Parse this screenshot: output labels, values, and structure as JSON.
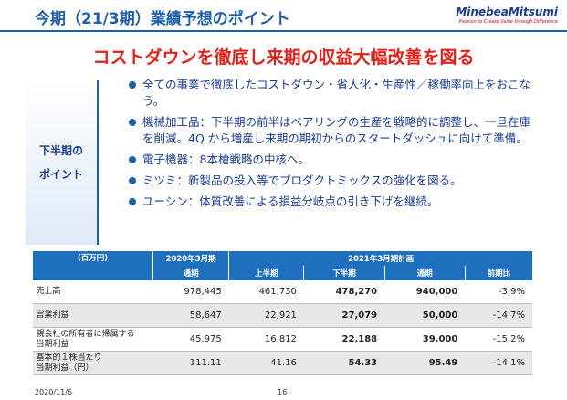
{
  "header": {
    "title": "今期（21/3期）業績予想のポイント",
    "logo": "MinebeaMitsumi",
    "tagline": "Passion to Create Value through Difference"
  },
  "headline": "コストダウンを徹底し来期の収益大幅改善を図る",
  "section_label": [
    "下半期の",
    "ポイント"
  ],
  "bullets": [
    "全ての事業で徹底したコストダウン・省人化・生産性／稼働率向上をおこなう。",
    "機械加工品：下半期の前半はベアリングの生産を戦略的に調整し、一旦在庫を削減。4Q から増産し来期の期初からのスタートダッシュに向けて準備。",
    "電子機器：8本槍戦略の中核へ。",
    "ミツミ：新製品の投入等でプロダクトミックスの強化を図る。",
    "ユーシン：体質改善による損益分岐点の引き下げを継続。"
  ],
  "table": {
    "unit": "(百万円)",
    "group_prev": "2020年3月期",
    "group_plan": "2021年3月期計画",
    "columns": [
      "通期",
      "上半期",
      "下半期",
      "通期",
      "前期比"
    ],
    "rows": [
      {
        "label": [
          "売上高"
        ],
        "cells": [
          "978,445",
          "461,730",
          "478,270",
          "940,000",
          "-3.9%"
        ]
      },
      {
        "label": [
          "営業利益"
        ],
        "cells": [
          "58,647",
          "22,921",
          "27,079",
          "50,000",
          "-14.7%"
        ]
      },
      {
        "label": [
          "親会社の所有者に帰属する",
          "当期利益"
        ],
        "cells": [
          "45,975",
          "16,812",
          "22,188",
          "39,000",
          "-15.2%"
        ]
      },
      {
        "label": [
          "基本的１株当たり",
          "当期利益（円）"
        ],
        "cells": [
          "111.11",
          "41.16",
          "54.33",
          "95.49",
          "-14.1%"
        ]
      }
    ]
  },
  "footer": {
    "date": "2020/11/6",
    "page": "16"
  }
}
